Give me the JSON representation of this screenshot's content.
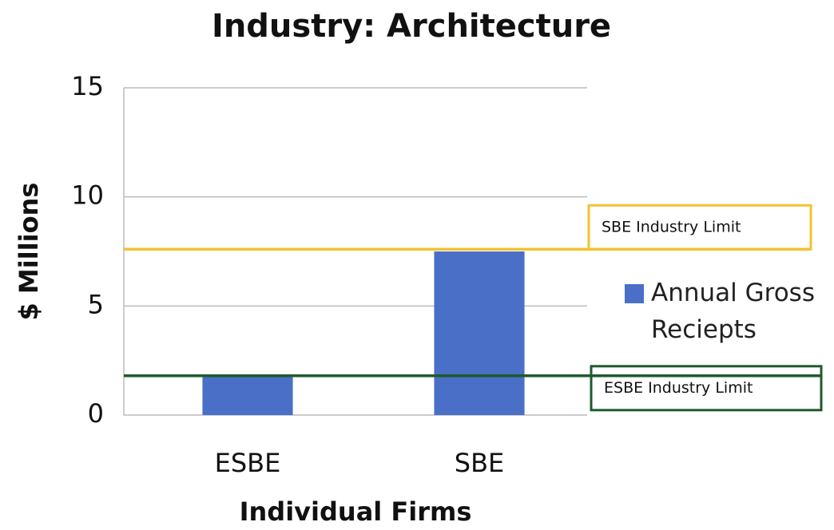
{
  "chart_data": {
    "type": "bar",
    "title": "Industry: Architecture",
    "xlabel": "Individual Firms",
    "ylabel": "$ Millions",
    "categories": [
      "ESBE",
      "SBE"
    ],
    "series": [
      {
        "name": "Annual Gross Reciepts",
        "color": "#4a6fc7",
        "values": [
          1.8,
          7.5
        ]
      }
    ],
    "ylim": [
      0,
      15
    ],
    "yticks": [
      0,
      5,
      10,
      15
    ],
    "grid": true,
    "reference_lines": [
      {
        "label": "SBE Industry Limit",
        "value": 7.6,
        "color": "#f2c230"
      },
      {
        "label": "ESBE Industry Limit",
        "value": 1.8,
        "color": "#1f5a2c"
      }
    ]
  }
}
